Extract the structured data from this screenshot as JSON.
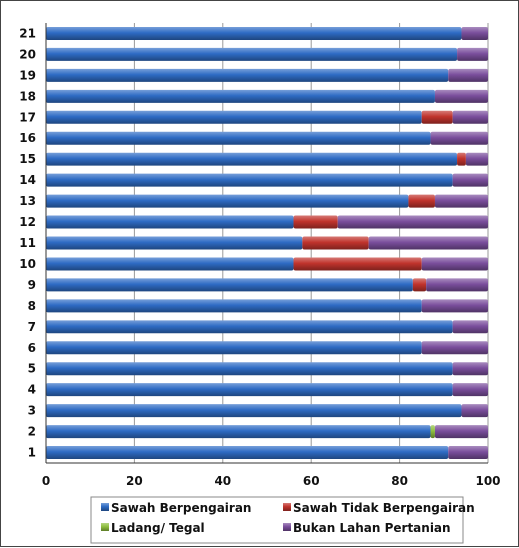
{
  "chart_data": {
    "type": "bar",
    "orientation": "horizontal",
    "stacked": true,
    "title": "",
    "xlabel": "",
    "ylabel": "",
    "xlim": [
      0,
      100
    ],
    "x_ticks": [
      "0",
      "20",
      "40",
      "60",
      "80",
      "100"
    ],
    "categories": [
      "1",
      "2",
      "3",
      "4",
      "5",
      "6",
      "7",
      "8",
      "9",
      "10",
      "11",
      "12",
      "13",
      "14",
      "15",
      "16",
      "17",
      "18",
      "19",
      "20",
      "21"
    ],
    "series": [
      {
        "name": "Sawah Berpengairan",
        "color": "#2e6bc4",
        "values": [
          91,
          87,
          94,
          92,
          92,
          85,
          92,
          85,
          83,
          56,
          58,
          56,
          82,
          92,
          93,
          87,
          85,
          88,
          91,
          93,
          94
        ]
      },
      {
        "name": "Sawah Tidak Berpengairan",
        "color": "#c0332c",
        "values": [
          0,
          0,
          0,
          0,
          0,
          0,
          0,
          0,
          3,
          29,
          15,
          10,
          6,
          0,
          2,
          0,
          7,
          0,
          0,
          0,
          0
        ]
      },
      {
        "name": "Ladang/ Tegal",
        "color": "#8fbf3f",
        "values": [
          0,
          1,
          0,
          0,
          0,
          0,
          0,
          0,
          0,
          0,
          0,
          0,
          0,
          0,
          0,
          0,
          0,
          0,
          0,
          0,
          0
        ]
      },
      {
        "name": "Bukan Lahan Pertanian",
        "color": "#7a4e9c",
        "values": [
          9,
          12,
          6,
          8,
          8,
          15,
          8,
          15,
          14,
          15,
          27,
          34,
          12,
          8,
          5,
          13,
          8,
          12,
          9,
          7,
          6
        ]
      }
    ],
    "grid": true,
    "legend_position": "bottom"
  }
}
